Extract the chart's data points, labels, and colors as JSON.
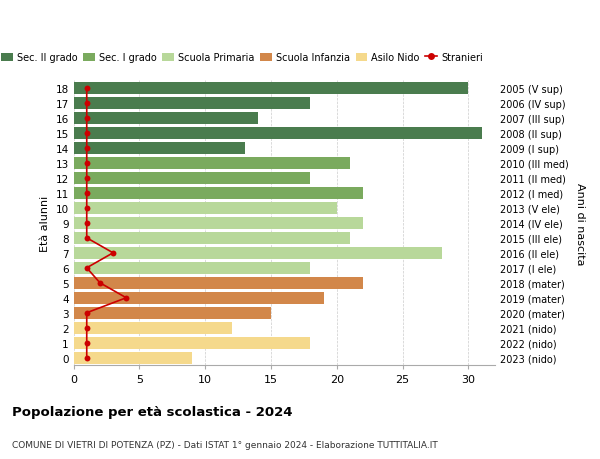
{
  "ages_bottom_to_top": [
    0,
    1,
    2,
    3,
    4,
    5,
    6,
    7,
    8,
    9,
    10,
    11,
    12,
    13,
    14,
    15,
    16,
    17,
    18
  ],
  "right_labels_bottom_to_top": [
    "2023 (nido)",
    "2022 (nido)",
    "2021 (nido)",
    "2020 (mater)",
    "2019 (mater)",
    "2018 (mater)",
    "2017 (I ele)",
    "2016 (II ele)",
    "2015 (III ele)",
    "2014 (IV ele)",
    "2013 (V ele)",
    "2012 (I med)",
    "2011 (II med)",
    "2010 (III med)",
    "2009 (I sup)",
    "2008 (II sup)",
    "2007 (III sup)",
    "2006 (IV sup)",
    "2005 (V sup)"
  ],
  "bar_values_bottom_to_top": [
    9,
    18,
    12,
    15,
    19,
    22,
    18,
    28,
    21,
    22,
    20,
    22,
    18,
    21,
    13,
    31,
    14,
    18,
    30
  ],
  "bar_colors_bottom_to_top": [
    "#f5d98c",
    "#f5d98c",
    "#f5d98c",
    "#d2874a",
    "#d2874a",
    "#d2874a",
    "#b8d89a",
    "#b8d89a",
    "#b8d89a",
    "#b8d89a",
    "#b8d89a",
    "#7aaa5e",
    "#7aaa5e",
    "#7aaa5e",
    "#4a7c4e",
    "#4a7c4e",
    "#4a7c4e",
    "#4a7c4e",
    "#4a7c4e"
  ],
  "stranieri_bottom_to_top": [
    1,
    1,
    1,
    1,
    4,
    2,
    1,
    3,
    1,
    1,
    1,
    1,
    1,
    1,
    1,
    1,
    1,
    1,
    1
  ],
  "legend_labels": [
    "Sec. II grado",
    "Sec. I grado",
    "Scuola Primaria",
    "Scuola Infanzia",
    "Asilo Nido",
    "Stranieri"
  ],
  "legend_colors": [
    "#4a7c4e",
    "#7aaa5e",
    "#b8d89a",
    "#d2874a",
    "#f5d98c",
    "#cc0000"
  ],
  "title": "Popolazione per età scolastica - 2024",
  "subtitle": "COMUNE DI VIETRI DI POTENZA (PZ) - Dati ISTAT 1° gennaio 2024 - Elaborazione TUTTITALIA.IT",
  "ylabel_left": "Età alunni",
  "ylabel_right": "Anni di nascita",
  "xlim": [
    0,
    32
  ],
  "grid_color": "#cccccc",
  "stranieri_color": "#cc0000"
}
